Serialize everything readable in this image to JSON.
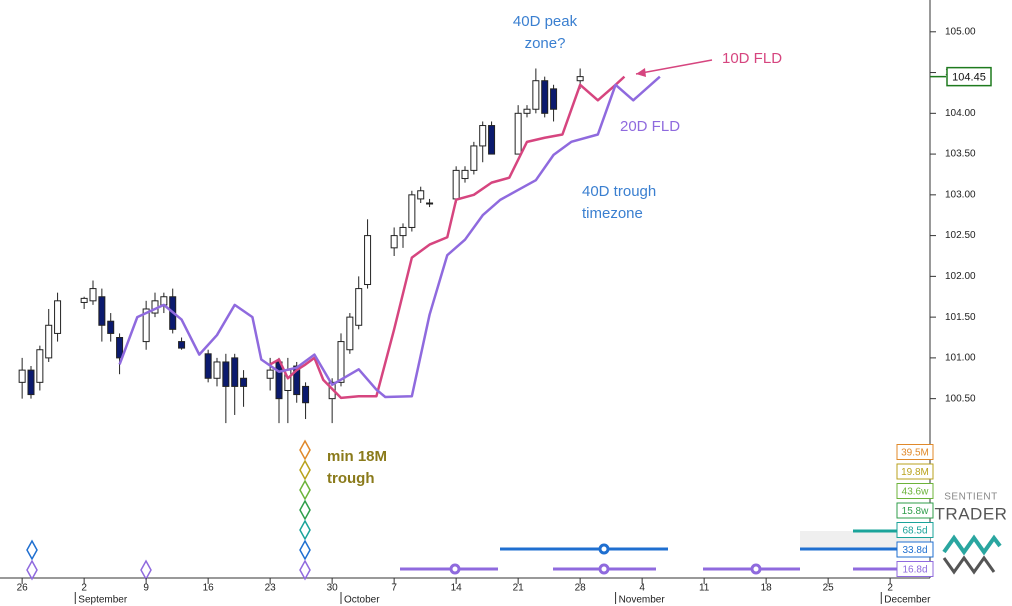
{
  "chart_data": {
    "type": "candlestick",
    "x": [
      0,
      1,
      2,
      3,
      4,
      7,
      8,
      9,
      10,
      11,
      14,
      15,
      16,
      17,
      18,
      21,
      22,
      23,
      24,
      25,
      28,
      29,
      30,
      31,
      32,
      35,
      36,
      37,
      38,
      39,
      42,
      43,
      44,
      45,
      46,
      49,
      50,
      51,
      52,
      53,
      56,
      57,
      58,
      59,
      60,
      63
    ],
    "open": [
      100.7,
      100.85,
      100.7,
      101.0,
      101.3,
      101.68,
      101.7,
      101.75,
      101.45,
      101.25,
      101.2,
      101.55,
      101.65,
      101.75,
      101.2,
      101.05,
      100.75,
      100.95,
      101.0,
      100.75,
      100.75,
      100.95,
      100.6,
      100.9,
      100.65,
      100.5,
      100.7,
      101.1,
      101.4,
      101.9,
      102.35,
      102.5,
      102.6,
      102.95,
      102.9,
      102.95,
      103.2,
      103.3,
      103.6,
      103.85,
      103.5,
      104.0,
      104.05,
      104.4,
      104.3,
      104.4
    ],
    "high": [
      101.0,
      100.9,
      101.15,
      101.6,
      101.8,
      101.75,
      101.95,
      101.85,
      101.55,
      101.3,
      101.7,
      101.8,
      101.8,
      101.85,
      101.25,
      101.1,
      101.0,
      101.05,
      101.05,
      100.85,
      101.0,
      101.0,
      101.0,
      100.95,
      100.7,
      100.75,
      101.3,
      101.55,
      102.0,
      102.7,
      102.6,
      102.65,
      103.05,
      103.1,
      102.95,
      103.35,
      103.35,
      103.65,
      103.9,
      103.9,
      104.1,
      104.1,
      104.55,
      104.45,
      104.35,
      104.55
    ],
    "low": [
      100.5,
      100.5,
      100.6,
      100.95,
      101.2,
      101.6,
      101.65,
      101.2,
      101.2,
      100.8,
      101.1,
      101.5,
      101.55,
      101.3,
      101.1,
      100.7,
      100.65,
      100.2,
      100.3,
      100.4,
      100.6,
      100.2,
      100.2,
      100.45,
      100.25,
      100.2,
      100.65,
      101.05,
      101.35,
      101.85,
      102.25,
      102.35,
      102.55,
      102.9,
      102.85,
      102.9,
      103.15,
      103.25,
      103.4,
      103.5,
      103.5,
      103.95,
      104.0,
      103.95,
      103.9,
      104.3
    ],
    "close": [
      100.85,
      100.55,
      101.1,
      101.4,
      101.7,
      101.73,
      101.85,
      101.4,
      101.3,
      101.0,
      101.6,
      101.7,
      101.75,
      101.35,
      101.12,
      100.75,
      100.95,
      100.65,
      100.65,
      100.65,
      100.85,
      100.5,
      100.85,
      100.55,
      100.45,
      100.7,
      101.2,
      101.5,
      101.85,
      102.5,
      102.5,
      102.6,
      103.0,
      103.05,
      102.9,
      103.3,
      103.3,
      103.6,
      103.85,
      103.5,
      104.0,
      104.05,
      104.4,
      104.0,
      104.05,
      104.45
    ],
    "up_color": "#ffffff",
    "down_color": "#0b1a6e",
    "series": [
      {
        "name": "10D FLD",
        "color": "#d6457f",
        "x": [
          28,
          29,
          30,
          31,
          32,
          33,
          34,
          36,
          38,
          40,
          42,
          44,
          46,
          48,
          49,
          51,
          53,
          55,
          57,
          59,
          61,
          63,
          65,
          67,
          68
        ],
        "values": [
          100.92,
          100.98,
          100.75,
          100.85,
          100.92,
          101.0,
          100.73,
          100.51,
          100.53,
          100.53,
          101.35,
          102.23,
          102.39,
          102.48,
          102.94,
          103.0,
          103.15,
          103.21,
          103.65,
          103.7,
          103.74,
          104.35,
          104.16,
          104.35,
          104.45
        ]
      },
      {
        "name": "20D FLD",
        "color": "#8f6ade",
        "x": [
          11,
          13,
          16,
          18,
          20,
          22,
          24,
          26,
          27,
          29,
          31,
          33,
          35,
          38,
          40,
          41,
          44,
          46,
          48,
          50,
          52,
          54,
          56,
          58,
          60,
          62,
          65,
          67,
          69,
          72
        ],
        "values": [
          100.92,
          101.5,
          101.65,
          101.47,
          101.04,
          101.28,
          101.65,
          101.5,
          100.98,
          100.83,
          100.88,
          101.04,
          100.67,
          100.86,
          100.61,
          100.52,
          100.53,
          101.53,
          102.26,
          102.45,
          102.75,
          102.94,
          103.06,
          103.18,
          103.49,
          103.65,
          103.74,
          104.35,
          104.16,
          104.45
        ]
      }
    ],
    "xlim": [
      -2.5,
      102.5
    ],
    "xticks": [
      {
        "value": 0,
        "label": "26"
      },
      {
        "value": 7,
        "label": "2"
      },
      {
        "value": 14,
        "label": "9"
      },
      {
        "value": 21,
        "label": "16"
      },
      {
        "value": 28,
        "label": "23"
      },
      {
        "value": 35,
        "label": "30"
      },
      {
        "value": 42,
        "label": "7"
      },
      {
        "value": 49,
        "label": "14"
      },
      {
        "value": 56,
        "label": "21"
      },
      {
        "value": 63,
        "label": "28"
      },
      {
        "value": 70,
        "label": "4"
      },
      {
        "value": 77,
        "label": "11"
      },
      {
        "value": 84,
        "label": "18"
      },
      {
        "value": 91,
        "label": "25"
      },
      {
        "value": 98,
        "label": "2"
      }
    ],
    "months": [
      {
        "value": 6,
        "label": "September"
      },
      {
        "value": 36,
        "label": "October"
      },
      {
        "value": 67,
        "label": "November"
      },
      {
        "value": 97,
        "label": "December"
      }
    ],
    "ylim": [
      98.3,
      105.39
    ],
    "yticks": [
      {
        "value": 100.5,
        "label": "100.50"
      },
      {
        "value": 101,
        "label": "101.00"
      },
      {
        "value": 101.5,
        "label": "101.50"
      },
      {
        "value": 102,
        "label": "102.00"
      },
      {
        "value": 102.5,
        "label": "102.50"
      },
      {
        "value": 103,
        "label": "103.00"
      },
      {
        "value": 103.5,
        "label": "103.50"
      },
      {
        "value": 104,
        "label": "104.00"
      },
      {
        "value": 104.5,
        "label": "104.50"
      },
      {
        "value": 105,
        "label": "105.00"
      }
    ],
    "last_price": 104.45,
    "last_price_color": "#1e7a1e",
    "annotations": [
      {
        "lines": [
          "40D peak",
          "zone?"
        ],
        "color": "#3a7fd0"
      },
      {
        "lines": [
          "10D FLD"
        ],
        "color": "#d6457f"
      },
      {
        "lines": [
          "20D FLD"
        ],
        "color": "#8f6ade"
      },
      {
        "lines": [
          "40D trough",
          "timezone"
        ],
        "color": "#3a7fd0"
      },
      {
        "lines": [
          "min 18M",
          "trough"
        ],
        "color": "#8a7a1a"
      }
    ],
    "cycle_labels": [
      {
        "label": "39.5M",
        "color": "#e0892a"
      },
      {
        "label": "19.8M",
        "color": "#b9a21c"
      },
      {
        "label": "43.6w",
        "color": "#6cb33a"
      },
      {
        "label": "15.8w",
        "color": "#2f9e4a"
      },
      {
        "label": "68.5d",
        "color": "#1aa39a"
      },
      {
        "label": "33.8d",
        "color": "#1f6fd0"
      },
      {
        "label": "16.8d",
        "color": "#8f6ade"
      }
    ],
    "logo": [
      "SENTIENT",
      "TRADER"
    ]
  }
}
